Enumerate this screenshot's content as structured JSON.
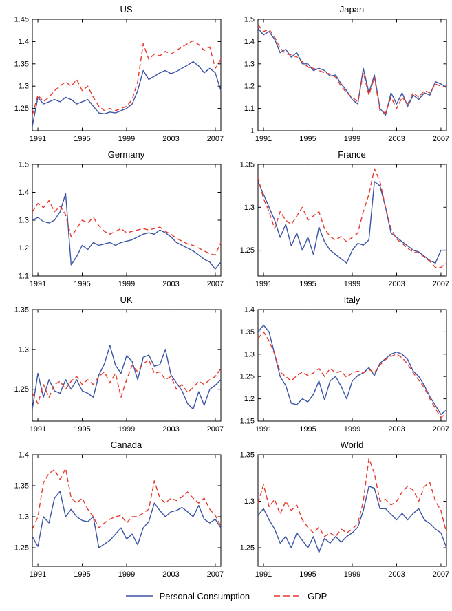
{
  "chart_data": {
    "type": "line",
    "layout": "4x2-grid",
    "x_label": "year",
    "x": [
      1990.5,
      1991,
      1991.5,
      1992,
      1992.5,
      1993,
      1993.5,
      1994,
      1994.5,
      1995,
      1995.5,
      1996,
      1996.5,
      1997,
      1997.5,
      1998,
      1998.5,
      1999,
      1999.5,
      2000,
      2000.5,
      2001,
      2001.5,
      2002,
      2002.5,
      2003,
      2003.5,
      2004,
      2004.5,
      2005,
      2005.5,
      2006,
      2006.5,
      2007,
      2007.5
    ],
    "xlim": [
      1990.5,
      2007.5
    ],
    "xticks": [
      1991,
      1995,
      1999,
      2003,
      2007
    ],
    "grid": false,
    "charts": [
      {
        "title": "US",
        "ylim": [
          1.2,
          1.45
        ],
        "yticks": [
          1.25,
          1.3,
          1.35,
          1.4,
          1.45
        ],
        "series": [
          {
            "name": "Personal Consumption",
            "values": [
              1.21,
              1.275,
              1.26,
              1.265,
              1.27,
              1.265,
              1.275,
              1.27,
              1.26,
              1.265,
              1.27,
              1.255,
              1.24,
              1.238,
              1.242,
              1.24,
              1.245,
              1.25,
              1.26,
              1.29,
              1.335,
              1.315,
              1.322,
              1.33,
              1.335,
              1.328,
              1.333,
              1.34,
              1.347,
              1.355,
              1.345,
              1.33,
              1.34,
              1.33,
              1.29
            ]
          },
          {
            "name": "GDP",
            "values": [
              1.235,
              1.28,
              1.265,
              1.275,
              1.29,
              1.3,
              1.31,
              1.3,
              1.315,
              1.29,
              1.3,
              1.275,
              1.255,
              1.245,
              1.25,
              1.245,
              1.25,
              1.255,
              1.27,
              1.31,
              1.395,
              1.36,
              1.372,
              1.368,
              1.378,
              1.372,
              1.38,
              1.388,
              1.395,
              1.402,
              1.393,
              1.38,
              1.388,
              1.34,
              1.36
            ]
          }
        ]
      },
      {
        "title": "Japan",
        "ylim": [
          1.0,
          1.5
        ],
        "yticks": [
          1,
          1.1,
          1.2,
          1.3,
          1.4,
          1.5
        ],
        "series": [
          {
            "name": "Personal Consumption",
            "values": [
              1.46,
              1.43,
              1.445,
              1.41,
              1.35,
              1.365,
              1.33,
              1.35,
              1.3,
              1.3,
              1.27,
              1.28,
              1.27,
              1.245,
              1.25,
              1.21,
              1.18,
              1.14,
              1.12,
              1.28,
              1.17,
              1.25,
              1.1,
              1.07,
              1.17,
              1.12,
              1.17,
              1.11,
              1.16,
              1.14,
              1.17,
              1.16,
              1.22,
              1.21,
              1.195
            ]
          },
          {
            "name": "GDP",
            "values": [
              1.475,
              1.445,
              1.455,
              1.42,
              1.37,
              1.345,
              1.34,
              1.33,
              1.31,
              1.285,
              1.28,
              1.27,
              1.26,
              1.255,
              1.24,
              1.2,
              1.17,
              1.15,
              1.13,
              1.26,
              1.16,
              1.24,
              1.09,
              1.08,
              1.15,
              1.1,
              1.15,
              1.12,
              1.17,
              1.15,
              1.18,
              1.17,
              1.21,
              1.2,
              1.195
            ]
          }
        ]
      },
      {
        "title": "Germany",
        "ylim": [
          1.1,
          1.5
        ],
        "yticks": [
          1.1,
          1.2,
          1.3,
          1.4,
          1.5
        ],
        "series": [
          {
            "name": "Personal Consumption",
            "values": [
              1.3,
              1.31,
              1.295,
              1.29,
              1.3,
              1.33,
              1.395,
              1.14,
              1.17,
              1.21,
              1.195,
              1.22,
              1.21,
              1.215,
              1.22,
              1.21,
              1.22,
              1.225,
              1.23,
              1.24,
              1.25,
              1.255,
              1.25,
              1.265,
              1.255,
              1.24,
              1.22,
              1.21,
              1.2,
              1.19,
              1.175,
              1.16,
              1.15,
              1.125,
              1.15
            ]
          },
          {
            "name": "GDP",
            "values": [
              1.33,
              1.36,
              1.345,
              1.37,
              1.33,
              1.35,
              1.32,
              1.24,
              1.27,
              1.3,
              1.29,
              1.31,
              1.28,
              1.26,
              1.25,
              1.26,
              1.27,
              1.255,
              1.26,
              1.265,
              1.27,
              1.265,
              1.27,
              1.275,
              1.26,
              1.25,
              1.235,
              1.225,
              1.215,
              1.21,
              1.2,
              1.19,
              1.18,
              1.175,
              1.22
            ]
          }
        ]
      },
      {
        "title": "France",
        "ylim": [
          1.22,
          1.35
        ],
        "yticks": [
          1.25,
          1.3,
          1.35
        ],
        "series": [
          {
            "name": "Personal Consumption",
            "values": [
              1.33,
              1.315,
              1.3,
              1.285,
              1.265,
              1.28,
              1.255,
              1.27,
              1.25,
              1.265,
              1.245,
              1.277,
              1.26,
              1.25,
              1.245,
              1.24,
              1.235,
              1.25,
              1.258,
              1.256,
              1.262,
              1.33,
              1.325,
              1.3,
              1.27,
              1.265,
              1.26,
              1.255,
              1.25,
              1.248,
              1.243,
              1.238,
              1.235,
              1.25,
              1.25
            ]
          },
          {
            "name": "GDP",
            "values": [
              1.335,
              1.31,
              1.295,
              1.275,
              1.295,
              1.285,
              1.28,
              1.29,
              1.3,
              1.285,
              1.29,
              1.295,
              1.275,
              1.266,
              1.262,
              1.266,
              1.26,
              1.265,
              1.27,
              1.295,
              1.315,
              1.345,
              1.33,
              1.3,
              1.275,
              1.263,
              1.258,
              1.252,
              1.248,
              1.247,
              1.242,
              1.237,
              1.23,
              1.23,
              1.235
            ]
          }
        ]
      },
      {
        "title": "UK",
        "ylim": [
          1.21,
          1.35
        ],
        "yticks": [
          1.25,
          1.3,
          1.35
        ],
        "series": [
          {
            "name": "Personal Consumption",
            "values": [
              1.225,
              1.27,
              1.24,
              1.262,
              1.248,
              1.245,
              1.262,
              1.25,
              1.262,
              1.248,
              1.245,
              1.24,
              1.268,
              1.282,
              1.305,
              1.28,
              1.27,
              1.292,
              1.285,
              1.262,
              1.29,
              1.293,
              1.279,
              1.281,
              1.3,
              1.268,
              1.258,
              1.248,
              1.232,
              1.225,
              1.247,
              1.23,
              1.25,
              1.255,
              1.262
            ]
          },
          {
            "name": "GDP",
            "values": [
              1.245,
              1.232,
              1.256,
              1.24,
              1.256,
              1.26,
              1.25,
              1.26,
              1.266,
              1.256,
              1.262,
              1.256,
              1.266,
              1.272,
              1.258,
              1.27,
              1.24,
              1.262,
              1.28,
              1.272,
              1.282,
              1.287,
              1.27,
              1.272,
              1.262,
              1.266,
              1.25,
              1.256,
              1.246,
              1.252,
              1.26,
              1.256,
              1.262,
              1.266,
              1.276
            ]
          }
        ]
      },
      {
        "title": "Italy",
        "ylim": [
          1.15,
          1.4
        ],
        "yticks": [
          1.15,
          1.2,
          1.25,
          1.3,
          1.35,
          1.4
        ],
        "series": [
          {
            "name": "Personal Consumption",
            "values": [
              1.35,
              1.365,
              1.35,
              1.3,
              1.25,
              1.23,
              1.19,
              1.187,
              1.2,
              1.193,
              1.21,
              1.24,
              1.198,
              1.24,
              1.25,
              1.228,
              1.2,
              1.24,
              1.252,
              1.258,
              1.27,
              1.252,
              1.28,
              1.29,
              1.3,
              1.305,
              1.3,
              1.288,
              1.262,
              1.25,
              1.23,
              1.205,
              1.185,
              1.165,
              1.175
            ]
          },
          {
            "name": "GDP",
            "values": [
              1.335,
              1.35,
              1.33,
              1.3,
              1.26,
              1.25,
              1.24,
              1.252,
              1.26,
              1.252,
              1.258,
              1.268,
              1.25,
              1.268,
              1.258,
              1.262,
              1.248,
              1.258,
              1.262,
              1.258,
              1.266,
              1.258,
              1.276,
              1.288,
              1.295,
              1.3,
              1.292,
              1.278,
              1.258,
              1.242,
              1.225,
              1.2,
              1.178,
              1.158,
              1.168
            ]
          }
        ]
      },
      {
        "title": "Canada",
        "ylim": [
          1.22,
          1.4
        ],
        "yticks": [
          1.25,
          1.3,
          1.35,
          1.4
        ],
        "series": [
          {
            "name": "Personal Consumption",
            "values": [
              1.268,
              1.252,
              1.3,
              1.29,
              1.33,
              1.341,
              1.3,
              1.312,
              1.3,
              1.294,
              1.292,
              1.3,
              1.25,
              1.256,
              1.262,
              1.272,
              1.282,
              1.264,
              1.272,
              1.255,
              1.282,
              1.292,
              1.322,
              1.31,
              1.3,
              1.308,
              1.31,
              1.315,
              1.308,
              1.3,
              1.318,
              1.296,
              1.29,
              1.296,
              1.282
            ]
          },
          {
            "name": "GDP",
            "values": [
              1.28,
              1.3,
              1.355,
              1.37,
              1.376,
              1.36,
              1.378,
              1.33,
              1.322,
              1.33,
              1.312,
              1.3,
              1.282,
              1.29,
              1.296,
              1.3,
              1.302,
              1.29,
              1.3,
              1.3,
              1.306,
              1.312,
              1.358,
              1.33,
              1.322,
              1.33,
              1.326,
              1.332,
              1.34,
              1.33,
              1.322,
              1.33,
              1.312,
              1.302,
              1.285
            ]
          }
        ]
      },
      {
        "title": "World",
        "ylim": [
          1.23,
          1.35
        ],
        "yticks": [
          1.25,
          1.3,
          1.35
        ],
        "series": [
          {
            "name": "Personal Consumption",
            "values": [
              1.285,
              1.292,
              1.28,
              1.27,
              1.255,
              1.262,
              1.25,
              1.266,
              1.258,
              1.25,
              1.262,
              1.245,
              1.26,
              1.255,
              1.262,
              1.256,
              1.262,
              1.266,
              1.272,
              1.29,
              1.316,
              1.314,
              1.292,
              1.292,
              1.286,
              1.28,
              1.287,
              1.28,
              1.287,
              1.292,
              1.28,
              1.276,
              1.27,
              1.266,
              1.25
            ]
          },
          {
            "name": "GDP",
            "values": [
              1.298,
              1.318,
              1.294,
              1.302,
              1.286,
              1.3,
              1.29,
              1.296,
              1.28,
              1.272,
              1.266,
              1.272,
              1.262,
              1.266,
              1.262,
              1.27,
              1.266,
              1.27,
              1.276,
              1.3,
              1.346,
              1.33,
              1.3,
              1.302,
              1.296,
              1.3,
              1.31,
              1.316,
              1.312,
              1.3,
              1.316,
              1.32,
              1.3,
              1.29,
              1.266
            ]
          }
        ]
      }
    ],
    "legend": {
      "position": "bottom-center",
      "items": [
        {
          "label": "Personal Consumption",
          "color": "#3b54a5",
          "style": "solid"
        },
        {
          "label": "GDP",
          "color": "#e8392c",
          "style": "dashed"
        }
      ]
    }
  }
}
